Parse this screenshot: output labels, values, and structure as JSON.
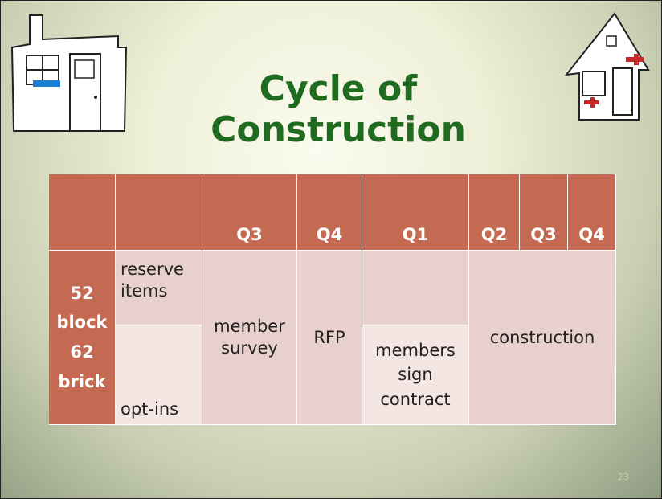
{
  "title": "Cycle of Construction",
  "table": {
    "header": [
      "Q3",
      "Q4",
      "Q1",
      "Q2",
      "Q3",
      "Q4"
    ],
    "side_label": "52 block 62 brick",
    "cells": [
      "reserve items",
      "opt-ins",
      "member survey",
      "RFP",
      "members sign contract",
      "construction"
    ]
  },
  "slide_number": "23"
}
